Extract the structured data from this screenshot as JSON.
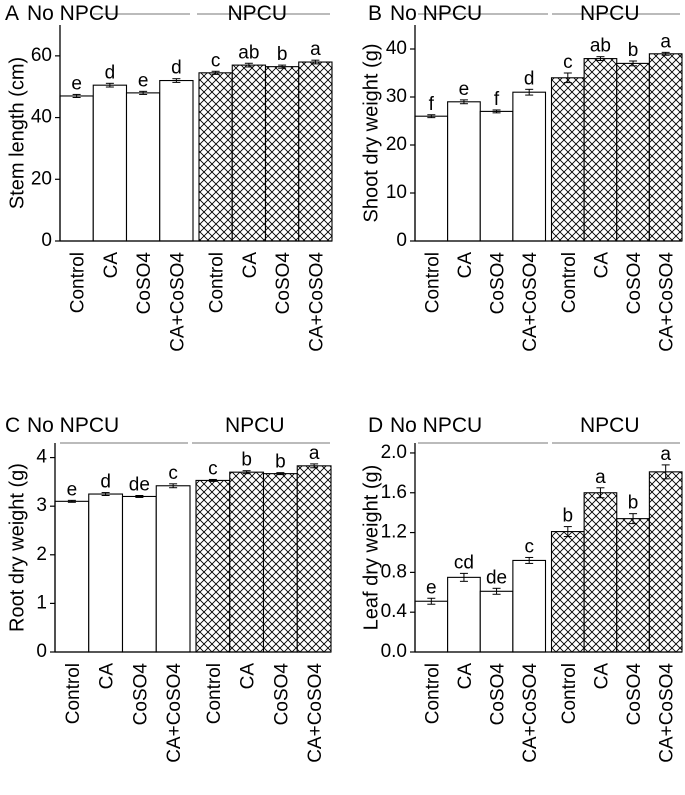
{
  "chart_data": [
    {
      "type": "bar",
      "panel_letter": "A",
      "ylabel": "Stem length (cm)",
      "ylim": [
        0,
        70
      ],
      "yticks": [
        0,
        20,
        40,
        60
      ],
      "yticks_display": [
        "0",
        "20",
        "40",
        "60"
      ],
      "groups": [
        {
          "label": "No NPCU",
          "pattern": "none",
          "categories": [
            "Control",
            "CA",
            "CoSO4",
            "CA+CoSO4"
          ],
          "values": [
            47,
            50.5,
            48,
            52
          ],
          "errors": [
            0.5,
            0.6,
            0.5,
            0.6
          ],
          "letters": [
            "e",
            "d",
            "e",
            "d"
          ]
        },
        {
          "label": "NPCU",
          "pattern": "crosshatch",
          "categories": [
            "Control",
            "CA",
            "CoSO4",
            "CA+CoSO4"
          ],
          "values": [
            54.5,
            57,
            56.5,
            58
          ],
          "errors": [
            0.5,
            0.6,
            0.5,
            0.6
          ],
          "letters": [
            "c",
            "ab",
            "b",
            "a"
          ]
        }
      ]
    },
    {
      "type": "bar",
      "panel_letter": "B",
      "ylabel": "Shoot dry weight (g)",
      "ylim": [
        0,
        45
      ],
      "yticks": [
        0,
        10,
        20,
        30,
        40
      ],
      "yticks_display": [
        "0",
        "10",
        "20",
        "30",
        "40"
      ],
      "groups": [
        {
          "label": "No NPCU",
          "pattern": "none",
          "categories": [
            "Control",
            "CA",
            "CoSO4",
            "CA+CoSO4"
          ],
          "values": [
            26,
            29,
            27,
            31
          ],
          "errors": [
            0.3,
            0.4,
            0.3,
            0.6
          ],
          "letters": [
            "f",
            "e",
            "f",
            "d"
          ]
        },
        {
          "label": "NPCU",
          "pattern": "crosshatch",
          "categories": [
            "Control",
            "CA",
            "CoSO4",
            "CA+CoSO4"
          ],
          "values": [
            34,
            38,
            37,
            39
          ],
          "errors": [
            1.0,
            0.4,
            0.5,
            0.3
          ],
          "letters": [
            "c",
            "ab",
            "b",
            "a"
          ]
        }
      ]
    },
    {
      "type": "bar",
      "panel_letter": "C",
      "ylabel": "Root dry weight (g)",
      "ylim": [
        0,
        4.3
      ],
      "yticks": [
        0,
        1,
        2,
        3,
        4
      ],
      "yticks_display": [
        "0",
        "1",
        "2",
        "3",
        "4"
      ],
      "groups": [
        {
          "label": "No NPCU",
          "pattern": "none",
          "categories": [
            "Control",
            "CA",
            "CoSO4",
            "CA+CoSO4"
          ],
          "values": [
            3.1,
            3.25,
            3.2,
            3.42
          ],
          "errors": [
            0.02,
            0.03,
            0.02,
            0.04
          ],
          "letters": [
            "e",
            "d",
            "de",
            "c"
          ]
        },
        {
          "label": "NPCU",
          "pattern": "crosshatch",
          "categories": [
            "Control",
            "CA",
            "CoSO4",
            "CA+CoSO4"
          ],
          "values": [
            3.53,
            3.7,
            3.67,
            3.83
          ],
          "errors": [
            0.02,
            0.03,
            0.02,
            0.04
          ],
          "letters": [
            "c",
            "b",
            "b",
            "a"
          ]
        }
      ]
    },
    {
      "type": "bar",
      "panel_letter": "D",
      "ylabel": "Leaf dry weight (g)",
      "ylim": [
        0,
        2.1
      ],
      "yticks": [
        0,
        0.4,
        0.8,
        1.2,
        1.6,
        2.0
      ],
      "yticks_display": [
        "0.0",
        "0.4",
        "0.8",
        "1.2",
        "1.6",
        "2.0"
      ],
      "groups": [
        {
          "label": "No NPCU",
          "pattern": "none",
          "categories": [
            "Control",
            "CA",
            "CoSO4",
            "CA+CoSO4"
          ],
          "values": [
            0.51,
            0.75,
            0.61,
            0.92
          ],
          "errors": [
            0.03,
            0.04,
            0.03,
            0.03
          ],
          "letters": [
            "e",
            "cd",
            "de",
            "c"
          ]
        },
        {
          "label": "NPCU",
          "pattern": "crosshatch",
          "categories": [
            "Control",
            "CA",
            "CoSO4",
            "CA+CoSO4"
          ],
          "values": [
            1.21,
            1.6,
            1.34,
            1.81
          ],
          "errors": [
            0.05,
            0.05,
            0.05,
            0.07
          ],
          "letters": [
            "b",
            "a",
            "b",
            "a"
          ]
        }
      ]
    }
  ]
}
